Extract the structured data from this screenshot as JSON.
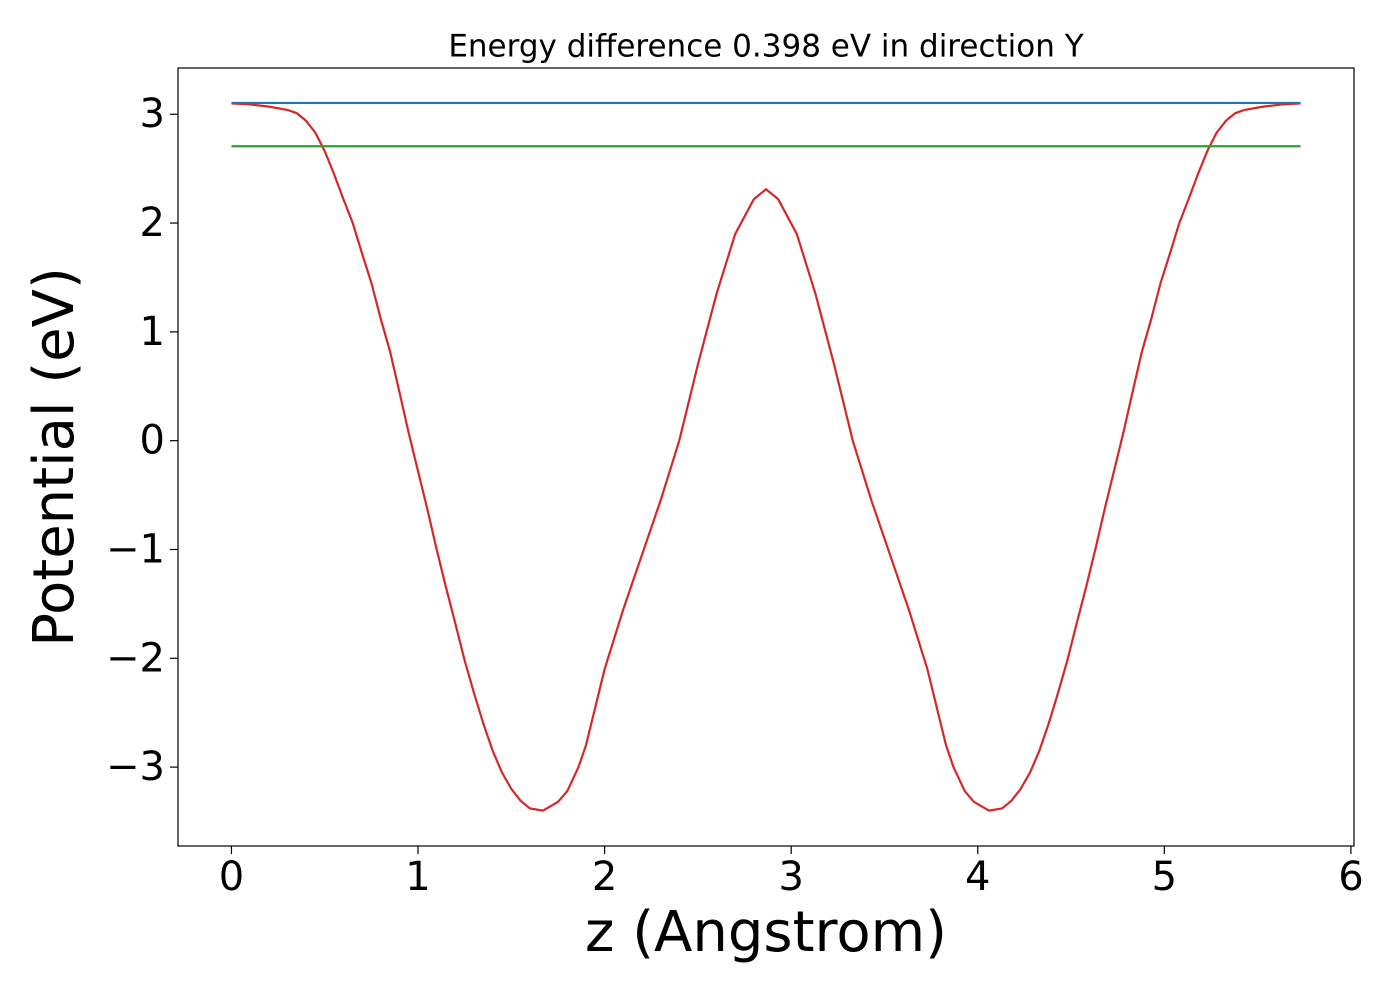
{
  "chart_data": {
    "type": "line",
    "title": "Energy difference 0.398 eV in direction Y",
    "x_label": "z (Angstrom)",
    "y_label": "Potential (eV)",
    "xlim": [
      -0.2865,
      6.0165
    ],
    "ylim": [
      -3.725,
      3.425
    ],
    "xticks": [
      0,
      1,
      2,
      3,
      4,
      5,
      6
    ],
    "yticks": [
      {
        "value": -3,
        "label": "−3"
      },
      {
        "value": -2,
        "label": "−2"
      },
      {
        "value": -1,
        "label": "−1"
      },
      0,
      1,
      2,
      3
    ],
    "grid": false,
    "series": [
      {
        "color": "#d62728",
        "x": [
          0,
          0.1,
          0.2,
          0.3,
          0.35,
          0.4,
          0.45,
          0.5,
          0.55,
          0.6,
          0.65,
          0.7,
          0.75,
          0.8,
          0.85,
          0.9,
          0.95,
          1.0,
          1.05,
          1.1,
          1.15,
          1.2,
          1.25,
          1.3,
          1.35,
          1.4,
          1.45,
          1.5,
          1.55,
          1.6,
          1.67,
          1.75,
          1.8,
          1.86,
          1.9,
          1.95,
          2.0,
          2.1,
          2.2,
          2.3,
          2.4,
          2.5,
          2.6,
          2.7,
          2.8,
          2.865,
          2.93,
          3.03,
          3.13,
          3.23,
          3.33,
          3.43,
          3.53,
          3.63,
          3.73,
          3.78,
          3.83,
          3.87,
          3.93,
          3.98,
          4.06,
          4.13,
          4.18,
          4.23,
          4.28,
          4.33,
          4.38,
          4.43,
          4.48,
          4.53,
          4.58,
          4.63,
          4.68,
          4.73,
          4.78,
          4.83,
          4.88,
          4.93,
          4.98,
          5.03,
          5.08,
          5.13,
          5.18,
          5.23,
          5.28,
          5.33,
          5.38,
          5.43,
          5.53,
          5.63,
          5.73
        ],
        "values": [
          3.1,
          3.09,
          3.07,
          3.04,
          3.01,
          2.94,
          2.83,
          2.66,
          2.45,
          2.22,
          2.0,
          1.72,
          1.45,
          1.12,
          0.82,
          0.45,
          0.07,
          -0.28,
          -0.63,
          -1.0,
          -1.35,
          -1.68,
          -2.02,
          -2.32,
          -2.6,
          -2.85,
          -3.05,
          -3.2,
          -3.31,
          -3.38,
          -3.4,
          -3.32,
          -3.22,
          -3.0,
          -2.8,
          -2.45,
          -2.1,
          -1.55,
          -1.05,
          -0.55,
          0.0,
          0.7,
          1.35,
          1.9,
          2.22,
          2.31,
          2.22,
          1.9,
          1.35,
          0.7,
          0.0,
          -0.55,
          -1.05,
          -1.55,
          -2.1,
          -2.45,
          -2.8,
          -3.0,
          -3.22,
          -3.32,
          -3.4,
          -3.38,
          -3.31,
          -3.2,
          -3.05,
          -2.85,
          -2.6,
          -2.32,
          -2.02,
          -1.68,
          -1.35,
          -1.0,
          -0.63,
          -0.28,
          0.07,
          0.45,
          0.82,
          1.12,
          1.45,
          1.72,
          2.0,
          2.22,
          2.45,
          2.66,
          2.83,
          2.94,
          3.01,
          3.04,
          3.07,
          3.09,
          3.1
        ]
      },
      {
        "color": "#1f77b4",
        "x": [
          0,
          5.73
        ],
        "values": [
          3.104,
          3.104
        ]
      },
      {
        "color": "#2ca02c",
        "x": [
          0,
          5.73
        ],
        "values": [
          2.706,
          2.706
        ]
      }
    ]
  }
}
